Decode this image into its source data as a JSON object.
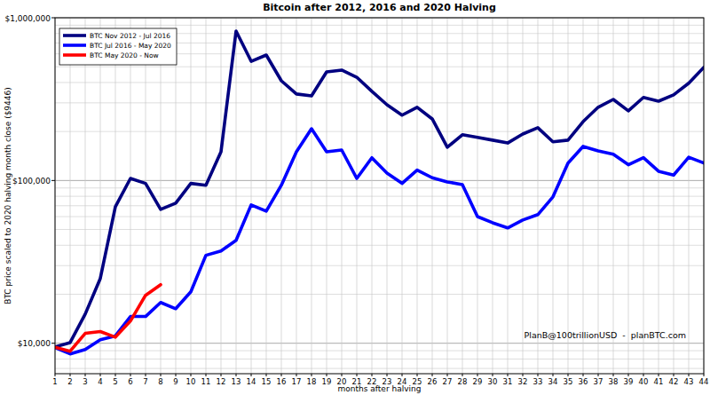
{
  "chart_data": {
    "type": "line",
    "title": "Bitcoin after 2012, 2016 and 2020 Halving",
    "x_label": "months after halving",
    "y_label": "BTC price scaled to 2020 halving month close ($9446)",
    "annotation": "PlanB@100trillionUSD  -  planBTC.com",
    "log": "y",
    "grid": true,
    "legend": "upper left",
    "x": [
      1,
      2,
      3,
      4,
      5,
      6,
      7,
      8,
      9,
      10,
      11,
      12,
      13,
      14,
      15,
      16,
      17,
      18,
      19,
      20,
      21,
      22,
      23,
      24,
      25,
      26,
      27,
      28,
      29,
      30,
      31,
      32,
      33,
      34,
      35,
      36,
      37,
      38,
      39,
      40,
      41,
      42,
      43,
      44
    ],
    "xlim": [
      1,
      44
    ],
    "xticks": [
      1,
      2,
      3,
      4,
      5,
      6,
      7,
      8,
      9,
      10,
      11,
      12,
      13,
      14,
      15,
      16,
      17,
      18,
      19,
      20,
      21,
      22,
      23,
      24,
      25,
      26,
      27,
      28,
      29,
      30,
      31,
      32,
      33,
      34,
      35,
      36,
      37,
      38,
      39,
      40,
      41,
      42,
      43,
      44
    ],
    "ylim": [
      6500,
      1000000
    ],
    "yticks": [
      {
        "value": 10000,
        "label": "$10,000"
      },
      {
        "value": 100000,
        "label": "$100,000"
      },
      {
        "value": 1000000,
        "label": "$1,000,000"
      }
    ],
    "series": [
      {
        "name": "BTC Nov 2012 - Jul 2016",
        "color": "#000080",
        "values": [
          9500,
          10100,
          15100,
          25000,
          69000,
          103000,
          96000,
          66500,
          72600,
          96000,
          93500,
          150000,
          828000,
          540000,
          590000,
          410000,
          340000,
          331000,
          465000,
          477000,
          431000,
          353000,
          292000,
          252000,
          282000,
          239000,
          160000,
          191000,
          184000,
          177000,
          170000,
          193000,
          211000,
          173000,
          177000,
          230000,
          282000,
          315000,
          268000,
          324000,
          307000,
          336000,
          396000,
          495000
        ]
      },
      {
        "name": "BTC Jul 2016 - May 2020",
        "color": "#0000ff",
        "values": [
          9400,
          8600,
          9150,
          10500,
          11100,
          14600,
          14600,
          17800,
          16300,
          20700,
          34700,
          36900,
          42900,
          70800,
          64800,
          93500,
          150000,
          208000,
          150000,
          154000,
          103000,
          138000,
          111000,
          96000,
          116000,
          104000,
          98000,
          94300,
          60000,
          55000,
          51100,
          57200,
          61700,
          79300,
          128000,
          162000,
          152000,
          145000,
          125000,
          138000,
          114000,
          108000,
          139000,
          128000
        ]
      },
      {
        "name": "BTC May 2020 - Now",
        "color": "#ff0000",
        "values": [
          9446,
          8930,
          11500,
          11800,
          10900,
          13700,
          19700,
          22900,
          null,
          null,
          null,
          null,
          null,
          null,
          null,
          null,
          null,
          null,
          null,
          null,
          null,
          null,
          null,
          null,
          null,
          null,
          null,
          null,
          null,
          null,
          null,
          null,
          null,
          null,
          null,
          null,
          null,
          null,
          null,
          null,
          null,
          null,
          null,
          null
        ]
      }
    ]
  }
}
